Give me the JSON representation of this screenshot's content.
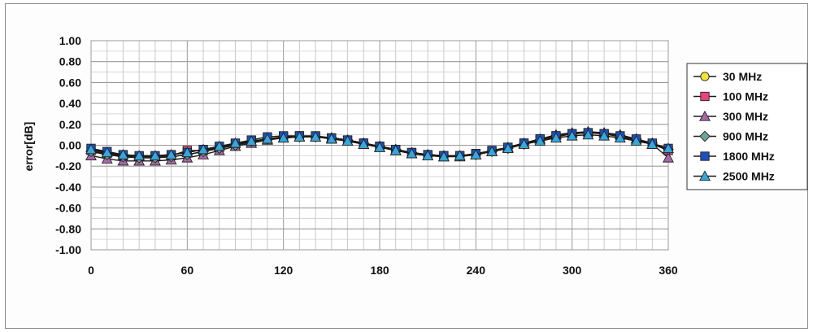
{
  "chart_data": {
    "type": "line",
    "title": "",
    "xlabel": "",
    "ylabel": "error[dB]",
    "xlim": [
      0,
      360
    ],
    "ylim": [
      -1.0,
      1.0
    ],
    "x_ticks": [
      "0",
      "60",
      "120",
      "180",
      "240",
      "300",
      "360"
    ],
    "y_ticks": [
      "1.00",
      "0.80",
      "0.60",
      "0.40",
      "0.20",
      "0.00",
      "-0.20",
      "-0.40",
      "-0.60",
      "-0.80",
      "-1.00"
    ],
    "grid": true,
    "legend_position": "right",
    "x": [
      0,
      10,
      20,
      30,
      40,
      50,
      60,
      70,
      80,
      90,
      100,
      110,
      120,
      130,
      140,
      150,
      160,
      170,
      180,
      190,
      200,
      210,
      220,
      230,
      240,
      250,
      260,
      270,
      280,
      290,
      300,
      310,
      320,
      330,
      340,
      350,
      360
    ],
    "series": [
      {
        "name": "30 MHz",
        "marker": "circle",
        "color": "#f2e23c",
        "values": [
          -0.06,
          -0.09,
          -0.11,
          -0.12,
          -0.12,
          -0.11,
          -0.09,
          -0.06,
          -0.03,
          0.0,
          0.03,
          0.06,
          0.07,
          0.08,
          0.08,
          0.07,
          0.05,
          0.02,
          -0.01,
          -0.04,
          -0.07,
          -0.09,
          -0.1,
          -0.1,
          -0.09,
          -0.06,
          -0.03,
          0.01,
          0.05,
          0.08,
          0.11,
          0.12,
          0.11,
          0.09,
          0.06,
          0.02,
          -0.04
        ]
      },
      {
        "name": "100 MHz",
        "marker": "square",
        "color": "#e8437a",
        "values": [
          -0.05,
          -0.08,
          -0.1,
          -0.11,
          -0.11,
          -0.1,
          -0.05,
          -0.05,
          -0.02,
          0.01,
          0.04,
          0.06,
          0.08,
          0.09,
          0.08,
          0.07,
          0.05,
          0.02,
          -0.01,
          -0.04,
          -0.07,
          -0.09,
          -0.1,
          -0.1,
          -0.08,
          -0.06,
          -0.02,
          0.02,
          0.06,
          0.09,
          0.11,
          0.12,
          0.11,
          0.08,
          0.05,
          0.01,
          -0.05
        ]
      },
      {
        "name": "300 MHz",
        "marker": "triangle",
        "color": "#a868a8",
        "values": [
          -0.1,
          -0.13,
          -0.15,
          -0.15,
          -0.15,
          -0.14,
          -0.12,
          -0.09,
          -0.05,
          -0.01,
          0.02,
          0.05,
          0.07,
          0.08,
          0.08,
          0.07,
          0.04,
          0.01,
          -0.02,
          -0.05,
          -0.08,
          -0.1,
          -0.11,
          -0.11,
          -0.09,
          -0.06,
          -0.02,
          0.02,
          0.06,
          0.1,
          0.12,
          0.13,
          0.12,
          0.1,
          0.06,
          0.01,
          -0.12
        ]
      },
      {
        "name": "900 MHz",
        "marker": "diamond",
        "color": "#6ea59a",
        "values": [
          -0.06,
          -0.09,
          -0.11,
          -0.12,
          -0.12,
          -0.11,
          -0.09,
          -0.06,
          -0.03,
          0.0,
          0.04,
          0.06,
          0.08,
          0.08,
          0.08,
          0.07,
          0.05,
          0.02,
          -0.01,
          -0.04,
          -0.07,
          -0.09,
          -0.1,
          -0.1,
          -0.09,
          -0.06,
          -0.03,
          0.01,
          0.05,
          0.09,
          0.11,
          0.12,
          0.11,
          0.09,
          0.06,
          0.02,
          -0.04
        ]
      },
      {
        "name": "1800 MHz",
        "marker": "square",
        "color": "#1f4fb8",
        "values": [
          -0.03,
          -0.06,
          -0.09,
          -0.1,
          -0.1,
          -0.09,
          -0.07,
          -0.04,
          -0.01,
          0.02,
          0.05,
          0.08,
          0.09,
          0.09,
          0.09,
          0.07,
          0.05,
          0.02,
          -0.01,
          -0.04,
          -0.07,
          -0.09,
          -0.1,
          -0.1,
          -0.08,
          -0.05,
          -0.02,
          0.02,
          0.06,
          0.09,
          0.11,
          0.12,
          0.11,
          0.09,
          0.06,
          0.02,
          -0.03
        ]
      },
      {
        "name": "2500 MHz",
        "marker": "triangle",
        "color": "#3aa6d8",
        "values": [
          -0.04,
          -0.07,
          -0.09,
          -0.1,
          -0.1,
          -0.09,
          -0.07,
          -0.04,
          -0.01,
          0.02,
          0.04,
          0.06,
          0.07,
          0.08,
          0.08,
          0.06,
          0.04,
          0.01,
          -0.02,
          -0.05,
          -0.08,
          -0.1,
          -0.11,
          -0.1,
          -0.09,
          -0.06,
          -0.03,
          0.01,
          0.04,
          0.07,
          0.09,
          0.1,
          0.09,
          0.07,
          0.04,
          0.01,
          -0.03
        ]
      }
    ]
  }
}
